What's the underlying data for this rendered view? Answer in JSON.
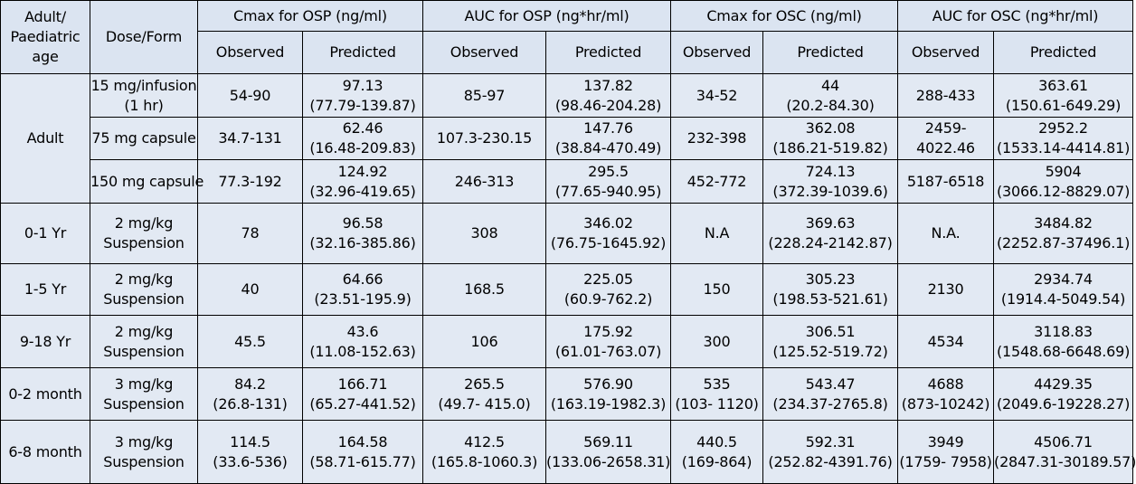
{
  "table": {
    "header": {
      "age": "Adult/ Paediatric age",
      "age_lines": [
        "Adult/",
        "Paediatric",
        "age"
      ],
      "dose": "Dose/Form",
      "groups": [
        "Cmax for OSP (ng/ml)",
        "AUC for OSP (ng*hr/ml)",
        "Cmax for OSC (ng/ml)",
        "AUC for OSC (ng*hr/ml)"
      ],
      "observed": "Observed",
      "predicted": "Predicted"
    },
    "adult": {
      "age": "Adult",
      "rows": [
        {
          "dose": [
            "15 mg/infusion",
            "(1 hr)"
          ],
          "cells": [
            [
              "54-90"
            ],
            [
              "97.13",
              "(77.79-139.87)"
            ],
            [
              "85-97"
            ],
            [
              "137.82",
              "(98.46-204.28)"
            ],
            [
              "34-52"
            ],
            [
              "44",
              "(20.2-84.30)"
            ],
            [
              "288-433"
            ],
            [
              "363.61",
              "(150.61-649.29)"
            ]
          ]
        },
        {
          "dose": [
            "75 mg capsule"
          ],
          "cells": [
            [
              "34.7-131"
            ],
            [
              "62.46",
              "(16.48-209.83)"
            ],
            [
              "107.3-230.15"
            ],
            [
              "147.76",
              "(38.84-470.49)"
            ],
            [
              "232-398"
            ],
            [
              "362.08",
              "(186.21-519.82)"
            ],
            [
              "2459-",
              "4022.46"
            ],
            [
              "2952.2",
              "(1533.14-4414.81)"
            ]
          ]
        },
        {
          "dose": [
            "150 mg capsule"
          ],
          "cells": [
            [
              "77.3-192"
            ],
            [
              "124.92",
              "(32.96-419.65)"
            ],
            [
              "246-313"
            ],
            [
              "295.5",
              "(77.65-940.95)"
            ],
            [
              "452-772"
            ],
            [
              "724.13",
              "(372.39-1039.6)"
            ],
            [
              "5187-6518"
            ],
            [
              "5904",
              "(3066.12-8829.07)"
            ]
          ]
        }
      ]
    },
    "paediatric": [
      {
        "age": "0-1 Yr",
        "dose": [
          "2 mg/kg",
          "Suspension"
        ],
        "cells": [
          [
            "78"
          ],
          [
            "96.58",
            "(32.16-385.86)"
          ],
          [
            "308"
          ],
          [
            "346.02",
            "(76.75-1645.92)"
          ],
          [
            "N.A"
          ],
          [
            "369.63",
            "(228.24-2142.87)"
          ],
          [
            "N.A."
          ],
          [
            "3484.82",
            "(2252.87-37496.1)"
          ]
        ]
      },
      {
        "age": "1-5 Yr",
        "dose": [
          "2 mg/kg",
          "Suspension"
        ],
        "cells": [
          [
            "40"
          ],
          [
            "64.66",
            "(23.51-195.9)"
          ],
          [
            "168.5"
          ],
          [
            "225.05",
            "(60.9-762.2)"
          ],
          [
            "150"
          ],
          [
            "305.23",
            "(198.53-521.61)"
          ],
          [
            "2130"
          ],
          [
            "2934.74",
            "(1914.4-5049.54)"
          ]
        ]
      },
      {
        "age": "9-18 Yr",
        "dose": [
          "2 mg/kg",
          "Suspension"
        ],
        "cells": [
          [
            "45.5"
          ],
          [
            "43.6",
            "(11.08-152.63)"
          ],
          [
            "106"
          ],
          [
            "175.92",
            "(61.01-763.07)"
          ],
          [
            "300"
          ],
          [
            "306.51",
            "(125.52-519.72)"
          ],
          [
            "4534"
          ],
          [
            "3118.83",
            "(1548.68-6648.69)"
          ]
        ]
      },
      {
        "age": "0-2 month",
        "dose": [
          "3 mg/kg",
          "Suspension"
        ],
        "cells": [
          [
            "84.2",
            "(26.8-131)"
          ],
          [
            "166.71",
            "(65.27-441.52)"
          ],
          [
            "265.5",
            "(49.7- 415.0)"
          ],
          [
            "576.90",
            "(163.19-1982.3)"
          ],
          [
            "535",
            "(103- 1120)"
          ],
          [
            "543.47",
            "(234.37-2765.8)"
          ],
          [
            "4688",
            "(873-10242)"
          ],
          [
            "4429.35",
            "(2049.6-19228.27)"
          ]
        ]
      },
      {
        "age": "6-8 month",
        "dose": [
          "3 mg/kg",
          "Suspension"
        ],
        "cells": [
          [
            "114.5",
            "(33.6-536)"
          ],
          [
            "164.58",
            "(58.71-615.77)"
          ],
          [
            "412.5",
            "(165.8-1060.3)"
          ],
          [
            "569.11",
            "(133.06-2658.31)"
          ],
          [
            "440.5",
            "(169-864)"
          ],
          [
            "592.31",
            "(252.82-4391.76)"
          ],
          [
            "3949",
            "(1759- 7958)"
          ],
          [
            "4506.71",
            "(2847.31-30189.57)"
          ]
        ]
      }
    ]
  },
  "colors": {
    "header_background": "#dbe4f1",
    "body_background": "#e2e9f3",
    "border": "#000000",
    "text": "#000000"
  }
}
